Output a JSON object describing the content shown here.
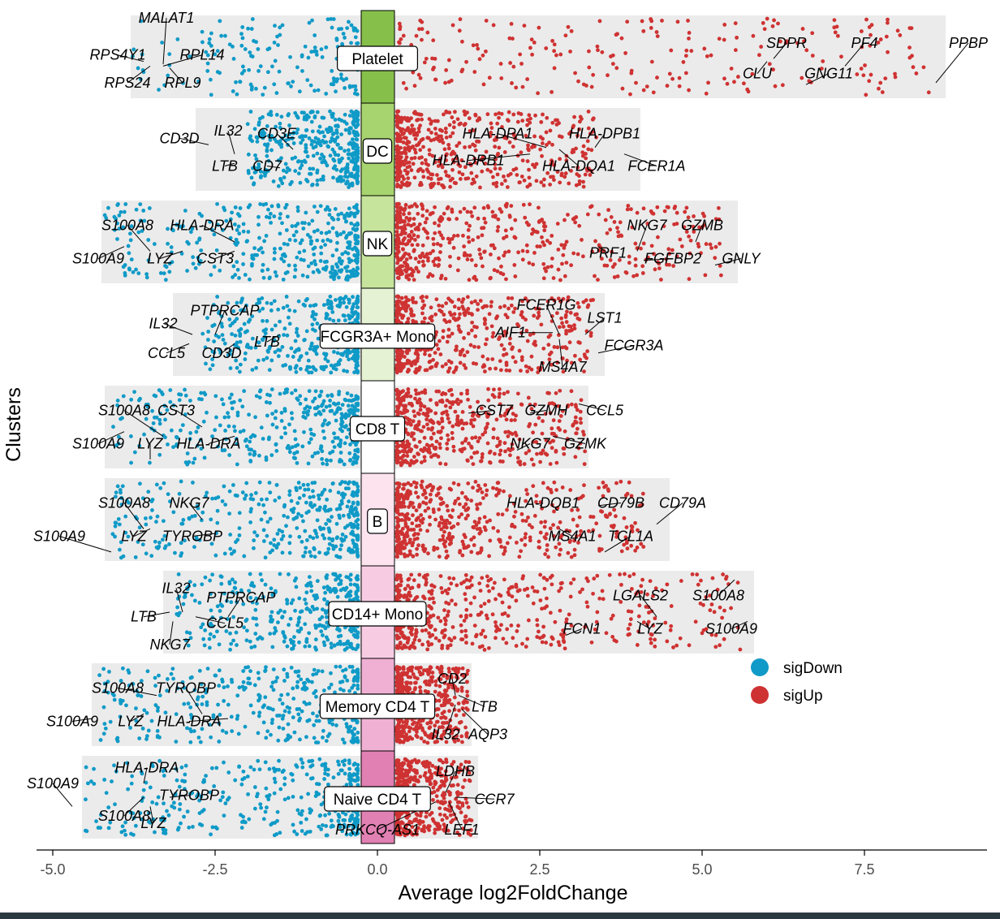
{
  "chart_data": {
    "type": "scatter",
    "title": "",
    "xlabel": "Average log2FoldChange",
    "ylabel": "Clusters",
    "xlim": [
      -5.2,
      9.4
    ],
    "xticks": [
      -5.0,
      -2.5,
      0.0,
      2.5,
      5.0,
      7.5
    ],
    "xtick_labels": [
      "-5.0",
      "-2.5",
      "0.0",
      "2.5",
      "5.0",
      "7.5"
    ],
    "legend": {
      "position": "right",
      "entries": [
        {
          "label": "sigDown",
          "color": "#0f9ac7"
        },
        {
          "label": "sigUp",
          "color": "#cf3232"
        }
      ]
    },
    "background_color": "#ebebeb",
    "points_per_cluster_approx": {
      "down": 380,
      "up": 520
    },
    "clusters": [
      {
        "name": "Platelet",
        "color": "#86c04a",
        "min": -3.8,
        "max": 8.75,
        "down_min": -3.8,
        "up_max": 8.6,
        "labels": [
          {
            "gene": "MALAT1",
            "x": -3.25,
            "row": 0.08,
            "px": -3.3,
            "py": 0.58
          },
          {
            "gene": "RPS4Y1",
            "x": -4.0,
            "row": 0.48,
            "px": -3.6,
            "py": 0.55
          },
          {
            "gene": "RPL14",
            "x": -2.7,
            "row": 0.48,
            "px": -3.3,
            "py": 0.6
          },
          {
            "gene": "RPS24",
            "x": -3.85,
            "row": 0.78,
            "px": -3.5,
            "py": 0.6
          },
          {
            "gene": "RPL9",
            "x": -3.0,
            "row": 0.78,
            "px": -3.2,
            "py": 0.62
          },
          {
            "gene": "SDPR",
            "x": 6.3,
            "row": 0.35,
            "px": 6.1,
            "py": 0.52
          },
          {
            "gene": "PF4",
            "x": 7.5,
            "row": 0.35,
            "px": 7.2,
            "py": 0.6
          },
          {
            "gene": "PPBP",
            "x": 9.1,
            "row": 0.35,
            "px": 8.6,
            "py": 0.78
          },
          {
            "gene": "CLU",
            "x": 5.85,
            "row": 0.68,
            "px": 6.0,
            "py": 0.55
          },
          {
            "gene": "GNG11",
            "x": 6.95,
            "row": 0.68,
            "px": 6.6,
            "py": 0.8
          }
        ]
      },
      {
        "name": "DC",
        "color": "#a8d46f",
        "min": -2.8,
        "max": 4.05,
        "down_min": -2.0,
        "up_max": 3.4,
        "labels": [
          {
            "gene": "CD3D",
            "x": -3.05,
            "row": 0.38,
            "px": -2.6,
            "py": 0.45
          },
          {
            "gene": "IL32",
            "x": -2.3,
            "row": 0.3,
            "px": -2.2,
            "py": 0.55
          },
          {
            "gene": "CD3E",
            "x": -1.55,
            "row": 0.33,
            "px": -1.3,
            "py": 0.5
          },
          {
            "gene": "LTB",
            "x": -2.35,
            "row": 0.68,
            "px": -2.2,
            "py": 0.65
          },
          {
            "gene": "CD7",
            "x": -1.7,
            "row": 0.68,
            "px": -1.5,
            "py": 0.7
          },
          {
            "gene": "HLA-DPA1",
            "x": 1.85,
            "row": 0.33,
            "px": 2.6,
            "py": 0.48
          },
          {
            "gene": "HLA-DPB1",
            "x": 3.5,
            "row": 0.33,
            "px": 3.35,
            "py": 0.48
          },
          {
            "gene": "HLA-DRB1",
            "x": 1.4,
            "row": 0.62,
            "px": 2.35,
            "py": 0.55
          },
          {
            "gene": "HLA-DQA1",
            "x": 3.1,
            "row": 0.68,
            "px": 2.8,
            "py": 0.5
          },
          {
            "gene": "FCER1A",
            "x": 4.3,
            "row": 0.68,
            "px": 3.8,
            "py": 0.55
          }
        ]
      },
      {
        "name": "NK",
        "color": "#c6e49b",
        "min": -4.25,
        "max": 5.55,
        "down_min": -4.2,
        "up_max": 5.3,
        "labels": [
          {
            "gene": "S100A8",
            "x": -3.85,
            "row": 0.32,
            "px": -3.5,
            "py": 0.6
          },
          {
            "gene": "HLA-DRA",
            "x": -2.7,
            "row": 0.32,
            "px": -2.2,
            "py": 0.5
          },
          {
            "gene": "S100A9",
            "x": -4.3,
            "row": 0.68,
            "px": -3.9,
            "py": 0.55
          },
          {
            "gene": "LYZ",
            "x": -3.35,
            "row": 0.68,
            "px": -3.0,
            "py": 0.6
          },
          {
            "gene": "CST3",
            "x": -2.5,
            "row": 0.68,
            "px": -2.2,
            "py": 0.6
          },
          {
            "gene": "NKG7",
            "x": 4.15,
            "row": 0.32,
            "px": 4.0,
            "py": 0.6
          },
          {
            "gene": "GZMB",
            "x": 5.0,
            "row": 0.32,
            "px": 4.9,
            "py": 0.5
          },
          {
            "gene": "PRF1",
            "x": 3.55,
            "row": 0.62,
            "px": 3.4,
            "py": 0.55
          },
          {
            "gene": "FGFBP2",
            "x": 4.55,
            "row": 0.68,
            "px": 4.1,
            "py": 0.7
          },
          {
            "gene": "GNLY",
            "x": 5.6,
            "row": 0.68,
            "px": 5.2,
            "py": 0.75
          }
        ]
      },
      {
        "name": "FCGR3A+ Mono",
        "color": "#e5f2d3",
        "min": -3.15,
        "max": 3.5,
        "down_min": -2.7,
        "up_max": 3.35,
        "labels": [
          {
            "gene": "PTPRCAP",
            "x": -2.35,
            "row": 0.24,
            "px": -2.5,
            "py": 0.5
          },
          {
            "gene": "IL32",
            "x": -3.3,
            "row": 0.38,
            "px": -2.85,
            "py": 0.5
          },
          {
            "gene": "LTB",
            "x": -1.7,
            "row": 0.58,
            "px": -1.5,
            "py": 0.5
          },
          {
            "gene": "CCL5",
            "x": -3.25,
            "row": 0.7,
            "px": -2.9,
            "py": 0.6
          },
          {
            "gene": "CD3D",
            "x": -2.4,
            "row": 0.7,
            "px": -2.2,
            "py": 0.6
          },
          {
            "gene": "FCER1G",
            "x": 2.6,
            "row": 0.18,
            "px": 2.8,
            "py": 0.5
          },
          {
            "gene": "LST1",
            "x": 3.5,
            "row": 0.32,
            "px": 3.2,
            "py": 0.5
          },
          {
            "gene": "AIF1",
            "x": 2.05,
            "row": 0.48,
            "px": 2.7,
            "py": 0.48
          },
          {
            "gene": "MS4A7",
            "x": 2.85,
            "row": 0.85,
            "px": 2.8,
            "py": 0.55
          },
          {
            "gene": "FCGR3A",
            "x": 3.95,
            "row": 0.62,
            "px": 3.4,
            "py": 0.7
          }
        ]
      },
      {
        "name": "CD8 T",
        "color": "#ffffff",
        "min": -4.2,
        "max": 3.25,
        "down_min": -4.1,
        "up_max": 3.2,
        "labels": [
          {
            "gene": "S100A8",
            "x": -3.9,
            "row": 0.32,
            "px": -3.3,
            "py": 0.6
          },
          {
            "gene": "CST3",
            "x": -3.1,
            "row": 0.32,
            "px": -2.7,
            "py": 0.5
          },
          {
            "gene": "S100A9",
            "x": -4.3,
            "row": 0.68,
            "px": -3.9,
            "py": 0.55
          },
          {
            "gene": "LYZ",
            "x": -3.5,
            "row": 0.68,
            "px": -3.5,
            "py": 0.85
          },
          {
            "gene": "HLA-DRA",
            "x": -2.6,
            "row": 0.68,
            "px": -2.2,
            "py": 0.6
          },
          {
            "gene": "CST7",
            "x": 1.8,
            "row": 0.32,
            "px": 1.4,
            "py": 0.35
          },
          {
            "gene": "GZMH",
            "x": 2.6,
            "row": 0.32,
            "px": 2.35,
            "py": 0.35
          },
          {
            "gene": "CCL5",
            "x": 3.5,
            "row": 0.32,
            "px": 3.1,
            "py": 0.25
          },
          {
            "gene": "NKG7",
            "x": 2.35,
            "row": 0.68,
            "px": 2.15,
            "py": 0.75
          },
          {
            "gene": "GZMK",
            "x": 3.2,
            "row": 0.68,
            "px": 2.7,
            "py": 0.6
          }
        ]
      },
      {
        "name": "B",
        "color": "#fce3ee",
        "min": -4.2,
        "max": 4.5,
        "down_min": -4.1,
        "up_max": 4.1,
        "labels": [
          {
            "gene": "S100A8",
            "x": -3.9,
            "row": 0.32,
            "px": -3.6,
            "py": 0.6
          },
          {
            "gene": "NKG7",
            "x": -2.9,
            "row": 0.32,
            "px": -2.7,
            "py": 0.5
          },
          {
            "gene": "S100A9",
            "x": -4.9,
            "row": 0.68,
            "px": -4.1,
            "py": 0.85
          },
          {
            "gene": "LYZ",
            "x": -3.75,
            "row": 0.68,
            "px": -3.5,
            "py": 0.6
          },
          {
            "gene": "TYROBP",
            "x": -2.85,
            "row": 0.68,
            "px": -2.5,
            "py": 0.65
          },
          {
            "gene": "HLA-DQB1",
            "x": 2.55,
            "row": 0.32,
            "px": 2.5,
            "py": 0.35
          },
          {
            "gene": "CD79B",
            "x": 3.75,
            "row": 0.32,
            "px": 3.4,
            "py": 0.35
          },
          {
            "gene": "CD79A",
            "x": 4.7,
            "row": 0.32,
            "px": 4.3,
            "py": 0.55
          },
          {
            "gene": "MS4A1",
            "x": 3.0,
            "row": 0.68,
            "px": 2.8,
            "py": 0.6
          },
          {
            "gene": "TCL1A",
            "x": 3.9,
            "row": 0.68,
            "px": 3.5,
            "py": 0.85
          }
        ]
      },
      {
        "name": "CD14+ Mono",
        "color": "#f7cce3",
        "min": -3.3,
        "max": 5.8,
        "down_min": -3.1,
        "up_max": 5.6,
        "labels": [
          {
            "gene": "IL32",
            "x": -3.1,
            "row": 0.24,
            "px": -3.0,
            "py": 0.5
          },
          {
            "gene": "PTPRCAP",
            "x": -2.1,
            "row": 0.34,
            "px": -2.3,
            "py": 0.55
          },
          {
            "gene": "LTB",
            "x": -3.6,
            "row": 0.55,
            "px": -3.2,
            "py": 0.5
          },
          {
            "gene": "CCL5",
            "x": -2.35,
            "row": 0.62,
            "px": -2.8,
            "py": 0.55
          },
          {
            "gene": "NKG7",
            "x": -3.2,
            "row": 0.85,
            "px": -3.15,
            "py": 0.6
          },
          {
            "gene": "LGALS2",
            "x": 4.05,
            "row": 0.32,
            "px": 4.3,
            "py": 0.55
          },
          {
            "gene": "S100A8",
            "x": 5.25,
            "row": 0.32,
            "px": 5.5,
            "py": 0.15
          },
          {
            "gene": "FCN1",
            "x": 3.15,
            "row": 0.68,
            "px": 2.9,
            "py": 0.75
          },
          {
            "gene": "LYZ",
            "x": 4.2,
            "row": 0.68,
            "px": 4.0,
            "py": 0.6
          },
          {
            "gene": "S100A9",
            "x": 5.45,
            "row": 0.68,
            "px": 5.7,
            "py": 0.6
          }
        ]
      },
      {
        "name": "Memory CD4 T",
        "color": "#efb0d4",
        "min": -4.4,
        "max": 1.45,
        "down_min": -4.3,
        "up_max": 1.4,
        "labels": [
          {
            "gene": "S100A8",
            "x": -4.0,
            "row": 0.32,
            "px": -3.4,
            "py": 0.4
          },
          {
            "gene": "TYROBP",
            "x": -2.95,
            "row": 0.32,
            "px": -2.7,
            "py": 0.6
          },
          {
            "gene": "S100A9",
            "x": -4.7,
            "row": 0.68,
            "px": -4.4,
            "py": 0.65
          },
          {
            "gene": "LYZ",
            "x": -3.8,
            "row": 0.68,
            "px": -3.6,
            "py": 0.6
          },
          {
            "gene": "HLA-DRA",
            "x": -2.9,
            "row": 0.68,
            "px": -2.3,
            "py": 0.65
          },
          {
            "gene": "CD2",
            "x": 1.15,
            "row": 0.22,
            "px": 1.2,
            "py": 0.4
          },
          {
            "gene": "LTB",
            "x": 1.65,
            "row": 0.52,
            "px": 1.25,
            "py": 0.4
          },
          {
            "gene": "IL32",
            "x": 1.05,
            "row": 0.82,
            "px": 1.2,
            "py": 0.5
          },
          {
            "gene": "AQP3",
            "x": 1.7,
            "row": 0.82,
            "px": 1.3,
            "py": 0.55
          }
        ]
      },
      {
        "name": "Naive CD4 T",
        "color": "#e180b2",
        "min": -4.55,
        "max": 1.55,
        "down_min": -4.5,
        "up_max": 1.45,
        "labels": [
          {
            "gene": "HLA-DRA",
            "x": -3.55,
            "row": 0.18,
            "px": -3.6,
            "py": 0.35
          },
          {
            "gene": "S100A9",
            "x": -5.0,
            "row": 0.35,
            "px": -4.7,
            "py": 0.6
          },
          {
            "gene": "TYROBP",
            "x": -2.9,
            "row": 0.48,
            "px": -3.2,
            "py": 0.5
          },
          {
            "gene": "S100A8",
            "x": -3.9,
            "row": 0.7,
            "px": -3.6,
            "py": 0.5
          },
          {
            "gene": "LYZ",
            "x": -3.45,
            "row": 0.78,
            "px": -3.5,
            "py": 0.6
          },
          {
            "gene": "LDHB",
            "x": 1.2,
            "row": 0.22,
            "px": 1.05,
            "py": 0.45
          },
          {
            "gene": "CCR7",
            "x": 1.8,
            "row": 0.52,
            "px": 1.2,
            "py": 0.5
          },
          {
            "gene": "PRKCQ-AS1",
            "x": 0.0,
            "row": 0.85,
            "px": 0.9,
            "py": 0.55
          },
          {
            "gene": "LEF1",
            "x": 1.3,
            "row": 0.85,
            "px": 1.1,
            "py": 0.55
          }
        ]
      }
    ]
  }
}
